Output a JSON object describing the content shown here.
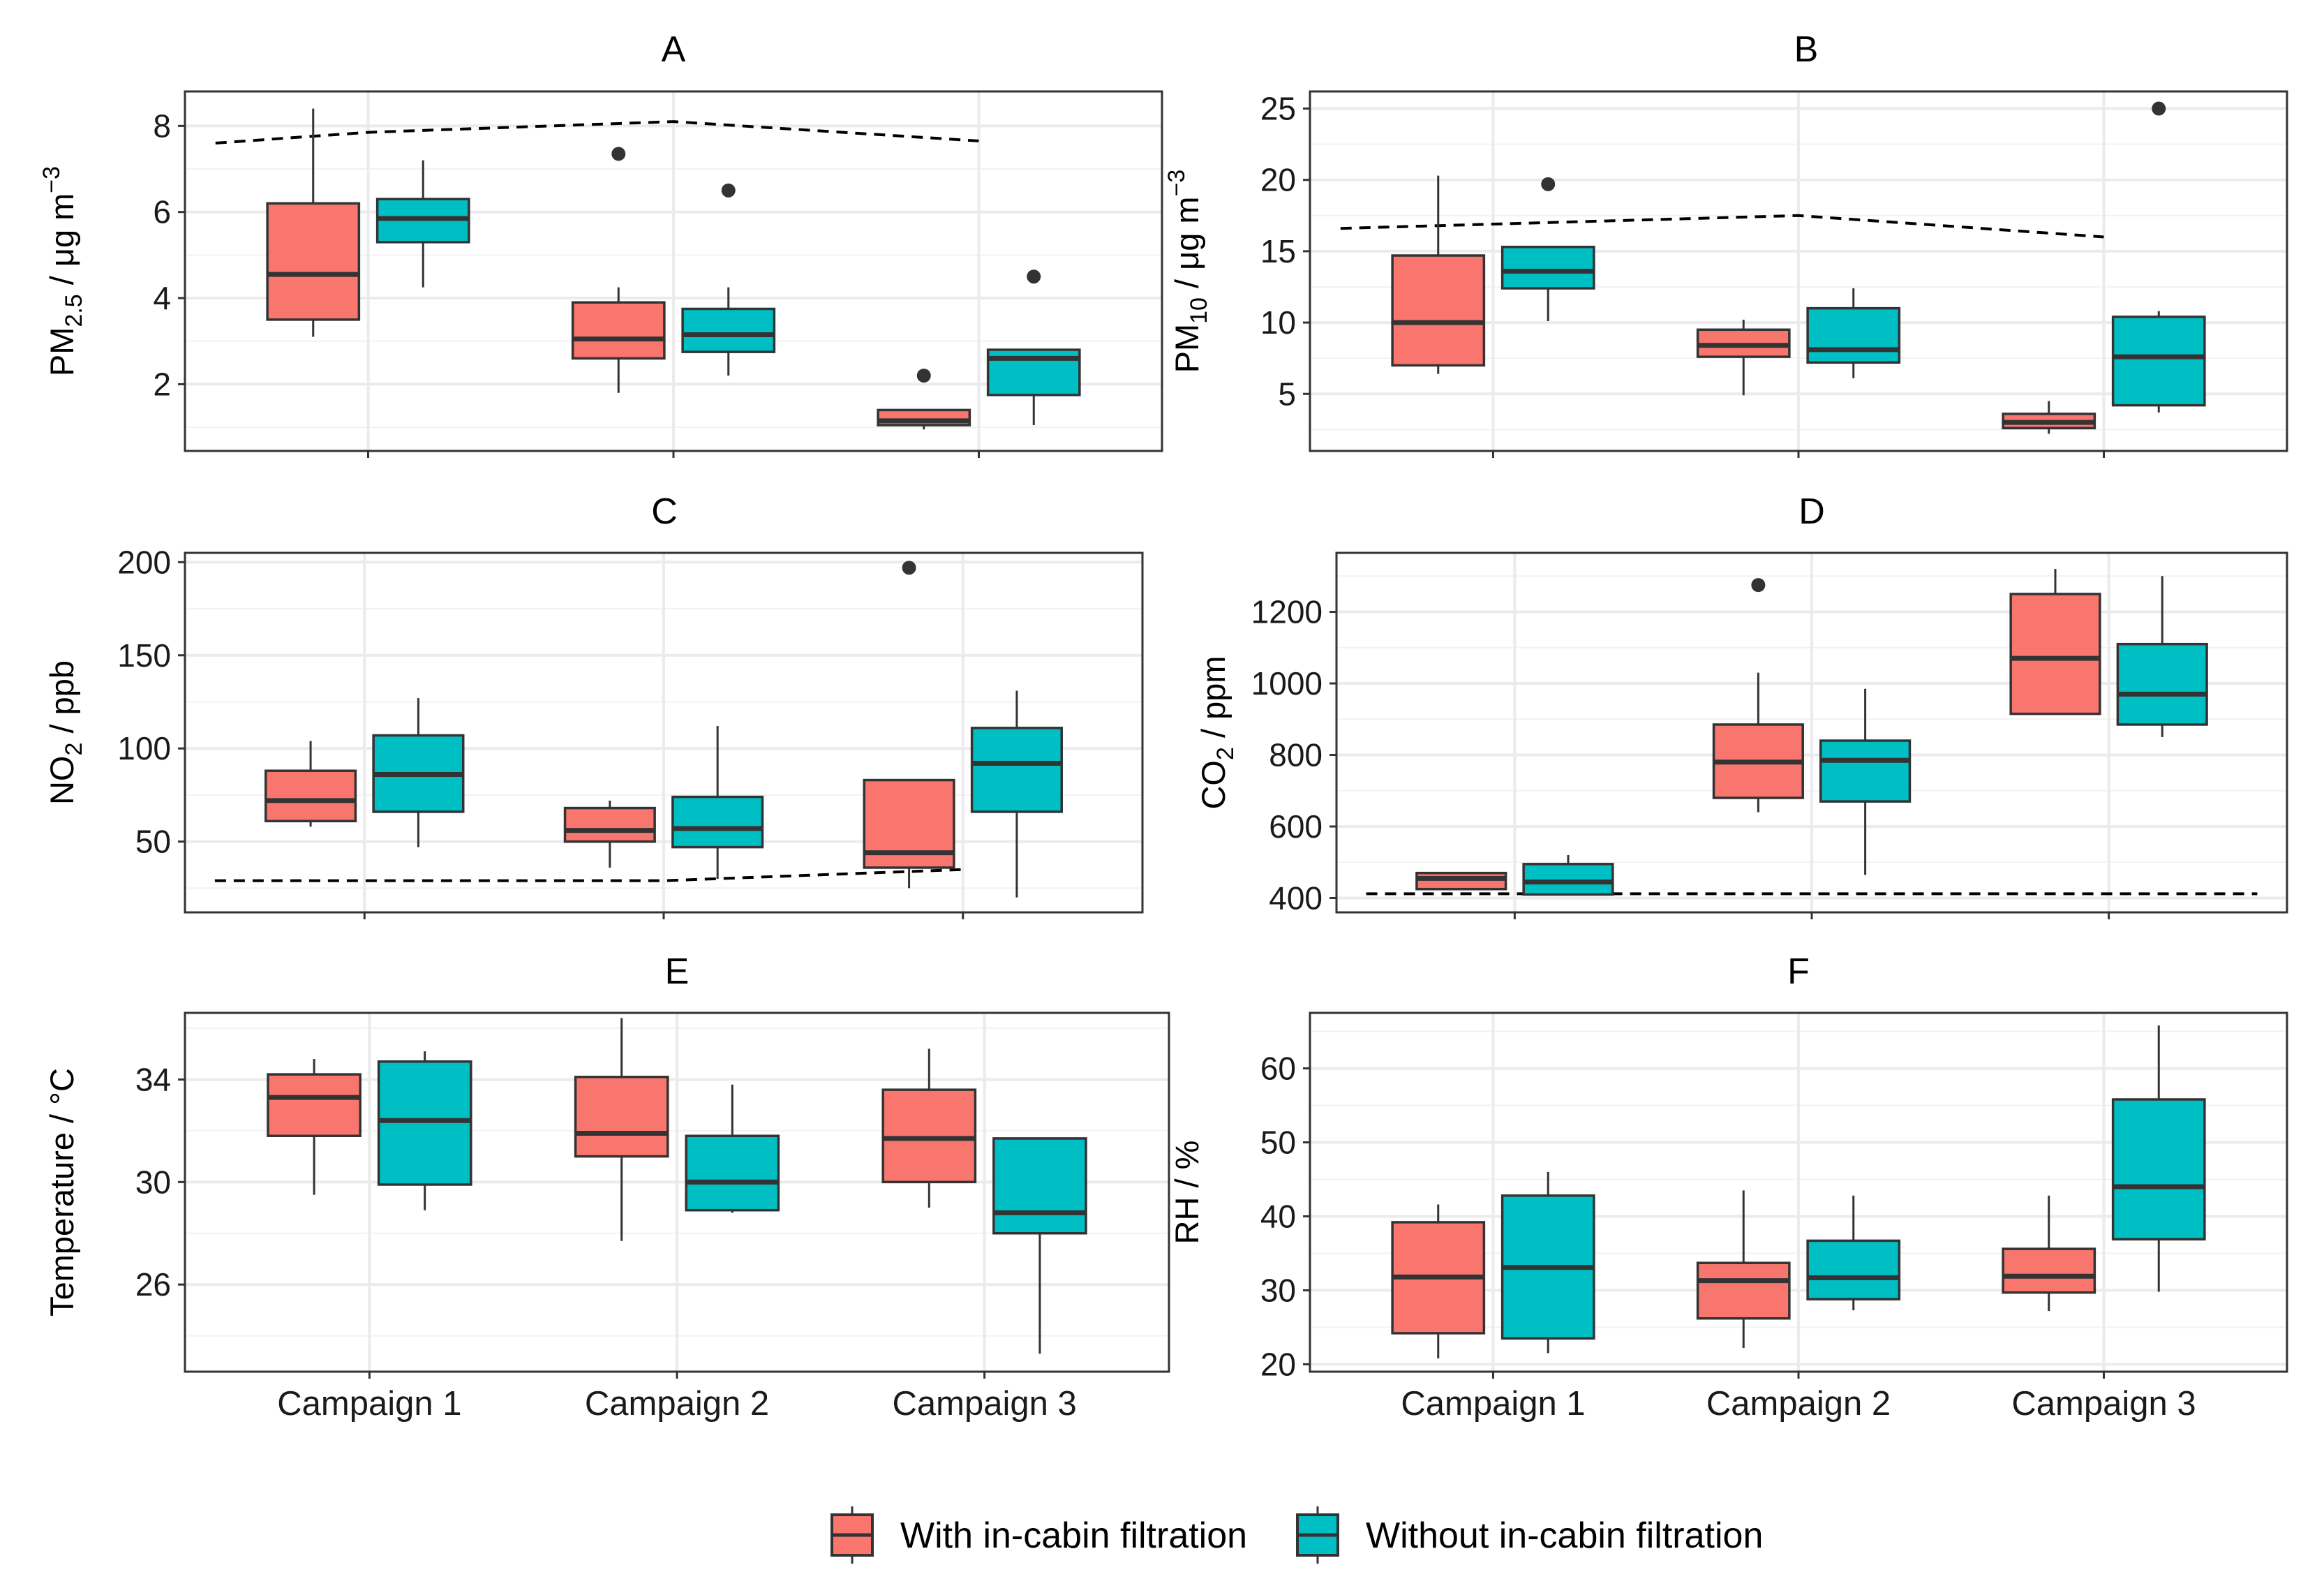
{
  "legend": {
    "items": [
      {
        "label": "With in-cabin filtration",
        "color": "#F8766D"
      },
      {
        "label": "Without in-cabin filtration",
        "color": "#00BFC4"
      }
    ]
  },
  "chart_data": [
    {
      "id": "A",
      "type": "boxplot",
      "title": "A",
      "ylabel": {
        "main": "PM",
        "sub": "2.5",
        "unit": " / μg m",
        "sup": "−3"
      },
      "categories": [
        "Campaign 1",
        "Campaign 2",
        "Campaign 3"
      ],
      "show_xtick_labels": false,
      "ylim": [
        0.45,
        8.8
      ],
      "yticks": [
        2,
        4,
        6,
        8
      ],
      "series": [
        {
          "name": "With in-cabin filtration",
          "color": "#F8766D",
          "boxes": [
            {
              "min": 3.1,
              "q1": 3.5,
              "median": 4.55,
              "q3": 6.2,
              "max": 8.4,
              "outliers": []
            },
            {
              "min": 1.8,
              "q1": 2.6,
              "median": 3.05,
              "q3": 3.9,
              "max": 4.25,
              "outliers": [
                7.35
              ]
            },
            {
              "min": 0.95,
              "q1": 1.05,
              "median": 1.15,
              "q3": 1.4,
              "max": 1.4,
              "outliers": [
                2.2
              ]
            }
          ]
        },
        {
          "name": "Without in-cabin filtration",
          "color": "#00BFC4",
          "boxes": [
            {
              "min": 4.25,
              "q1": 5.3,
              "median": 5.85,
              "q3": 6.3,
              "max": 7.2,
              "outliers": []
            },
            {
              "min": 2.2,
              "q1": 2.75,
              "median": 3.15,
              "q3": 3.75,
              "max": 4.25,
              "outliers": [
                6.5
              ]
            },
            {
              "min": 1.05,
              "q1": 1.75,
              "median": 2.6,
              "q3": 2.8,
              "max": 2.8,
              "outliers": [
                4.5
              ]
            }
          ]
        }
      ],
      "reference_line": {
        "x": [
          0.5,
          1,
          2,
          3
        ],
        "y": [
          7.6,
          7.85,
          8.1,
          7.65
        ]
      }
    },
    {
      "id": "B",
      "type": "boxplot",
      "title": "B",
      "ylabel": {
        "main": "PM",
        "sub": "10",
        "unit": " / μg m",
        "sup": "−3"
      },
      "categories": [
        "Campaign 1",
        "Campaign 2",
        "Campaign 3"
      ],
      "show_xtick_labels": false,
      "ylim": [
        1.0,
        26.2
      ],
      "yticks": [
        5,
        10,
        15,
        20,
        25
      ],
      "series": [
        {
          "name": "With in-cabin filtration",
          "color": "#F8766D",
          "boxes": [
            {
              "min": 6.4,
              "q1": 7.0,
              "median": 10.0,
              "q3": 14.7,
              "max": 20.3,
              "outliers": []
            },
            {
              "min": 4.9,
              "q1": 7.6,
              "median": 8.4,
              "q3": 9.5,
              "max": 10.2,
              "outliers": []
            },
            {
              "min": 2.2,
              "q1": 2.6,
              "median": 3.0,
              "q3": 3.6,
              "max": 4.5,
              "outliers": []
            }
          ]
        },
        {
          "name": "Without in-cabin filtration",
          "color": "#00BFC4",
          "boxes": [
            {
              "min": 10.1,
              "q1": 12.4,
              "median": 13.6,
              "q3": 15.3,
              "max": 15.3,
              "outliers": [
                19.7
              ]
            },
            {
              "min": 6.1,
              "q1": 7.2,
              "median": 8.1,
              "q3": 11.0,
              "max": 12.4,
              "outliers": []
            },
            {
              "min": 3.7,
              "q1": 4.2,
              "median": 7.6,
              "q3": 10.4,
              "max": 10.8,
              "outliers": [
                25.0
              ]
            }
          ]
        }
      ],
      "reference_line": {
        "x": [
          0.5,
          1,
          2,
          3
        ],
        "y": [
          16.6,
          16.9,
          17.5,
          16.0
        ]
      }
    },
    {
      "id": "C",
      "type": "boxplot",
      "title": "C",
      "ylabel": {
        "main": "NO",
        "sub": "2",
        "unit": " / ppb",
        "sup": ""
      },
      "categories": [
        "Campaign 1",
        "Campaign 2",
        "Campaign 3"
      ],
      "show_xtick_labels": false,
      "ylim": [
        12,
        205
      ],
      "yticks": [
        50,
        100,
        150,
        200
      ],
      "series": [
        {
          "name": "With in-cabin filtration",
          "color": "#F8766D",
          "boxes": [
            {
              "min": 58,
              "q1": 61,
              "median": 72,
              "q3": 88,
              "max": 104,
              "outliers": []
            },
            {
              "min": 36,
              "q1": 50,
              "median": 56,
              "q3": 68,
              "max": 72,
              "outliers": []
            },
            {
              "min": 25,
              "q1": 36,
              "median": 44,
              "q3": 83,
              "max": 83,
              "outliers": [
                197
              ]
            }
          ]
        },
        {
          "name": "Without in-cabin filtration",
          "color": "#00BFC4",
          "boxes": [
            {
              "min": 47,
              "q1": 66,
              "median": 86,
              "q3": 107,
              "max": 127,
              "outliers": []
            },
            {
              "min": 30,
              "q1": 47,
              "median": 57,
              "q3": 74,
              "max": 112,
              "outliers": []
            },
            {
              "min": 20,
              "q1": 66,
              "median": 92,
              "q3": 111,
              "max": 131,
              "outliers": []
            }
          ]
        }
      ],
      "reference_line": {
        "x": [
          0.5,
          1,
          2,
          3
        ],
        "y": [
          29,
          29,
          29,
          35
        ]
      }
    },
    {
      "id": "D",
      "type": "boxplot",
      "title": "D",
      "ylabel": {
        "main": "CO",
        "sub": "2",
        "unit": " / ppm",
        "sup": ""
      },
      "categories": [
        "Campaign 1",
        "Campaign 2",
        "Campaign 3"
      ],
      "show_xtick_labels": false,
      "ylim": [
        360,
        1365
      ],
      "yticks": [
        400,
        600,
        800,
        1000,
        1200
      ],
      "series": [
        {
          "name": "With in-cabin filtration",
          "color": "#F8766D",
          "boxes": [
            {
              "min": 425,
              "q1": 425,
              "median": 455,
              "q3": 470,
              "max": 470,
              "outliers": []
            },
            {
              "min": 640,
              "q1": 680,
              "median": 780,
              "q3": 885,
              "max": 1030,
              "outliers": [
                1275
              ]
            },
            {
              "min": 915,
              "q1": 915,
              "median": 1070,
              "q3": 1250,
              "max": 1320,
              "outliers": []
            }
          ]
        },
        {
          "name": "Without in-cabin filtration",
          "color": "#00BFC4",
          "boxes": [
            {
              "min": 410,
              "q1": 410,
              "median": 445,
              "q3": 495,
              "max": 520,
              "outliers": []
            },
            {
              "min": 465,
              "q1": 670,
              "median": 785,
              "q3": 840,
              "max": 985,
              "outliers": []
            },
            {
              "min": 850,
              "q1": 885,
              "median": 970,
              "q3": 1110,
              "max": 1300,
              "outliers": []
            }
          ]
        }
      ],
      "reference_line": {
        "x": [
          0.5,
          3.5
        ],
        "y": [
          412,
          412
        ]
      }
    },
    {
      "id": "E",
      "type": "boxplot",
      "title": "E",
      "ylabel": {
        "main": "Temperature / °C",
        "sub": "",
        "unit": "",
        "sup": ""
      },
      "categories": [
        "Campaign 1",
        "Campaign 2",
        "Campaign 3"
      ],
      "show_xtick_labels": true,
      "ylim": [
        22.6,
        36.6
      ],
      "yticks": [
        26,
        30,
        34
      ],
      "series": [
        {
          "name": "With in-cabin filtration",
          "color": "#F8766D",
          "boxes": [
            {
              "min": 29.5,
              "q1": 31.8,
              "median": 33.3,
              "q3": 34.2,
              "max": 34.8,
              "outliers": []
            },
            {
              "min": 27.7,
              "q1": 31.0,
              "median": 31.9,
              "q3": 34.1,
              "max": 36.4,
              "outliers": []
            },
            {
              "min": 29.0,
              "q1": 30.0,
              "median": 31.7,
              "q3": 33.6,
              "max": 35.2,
              "outliers": []
            }
          ]
        },
        {
          "name": "Without in-cabin filtration",
          "color": "#00BFC4",
          "boxes": [
            {
              "min": 28.9,
              "q1": 29.9,
              "median": 32.4,
              "q3": 34.7,
              "max": 35.1,
              "outliers": []
            },
            {
              "min": 28.8,
              "q1": 28.9,
              "median": 30.0,
              "q3": 31.8,
              "max": 33.8,
              "outliers": []
            },
            {
              "min": 23.3,
              "q1": 28.0,
              "median": 28.8,
              "q3": 31.7,
              "max": 31.7,
              "outliers": []
            }
          ]
        }
      ],
      "reference_line": null
    },
    {
      "id": "F",
      "type": "boxplot",
      "title": "F",
      "ylabel": {
        "main": "RH / %",
        "sub": "",
        "unit": "",
        "sup": ""
      },
      "categories": [
        "Campaign 1",
        "Campaign 2",
        "Campaign 3"
      ],
      "show_xtick_labels": true,
      "ylim": [
        19,
        67.5
      ],
      "yticks": [
        20,
        30,
        40,
        50,
        60
      ],
      "series": [
        {
          "name": "With in-cabin filtration",
          "color": "#F8766D",
          "boxes": [
            {
              "min": 20.8,
              "q1": 24.2,
              "median": 31.8,
              "q3": 39.2,
              "max": 41.6,
              "outliers": []
            },
            {
              "min": 22.2,
              "q1": 26.2,
              "median": 31.3,
              "q3": 33.7,
              "max": 43.5,
              "outliers": []
            },
            {
              "min": 27.2,
              "q1": 29.7,
              "median": 31.9,
              "q3": 35.6,
              "max": 42.8,
              "outliers": []
            }
          ]
        },
        {
          "name": "Without in-cabin filtration",
          "color": "#00BFC4",
          "boxes": [
            {
              "min": 21.5,
              "q1": 23.5,
              "median": 33.1,
              "q3": 42.8,
              "max": 46.0,
              "outliers": []
            },
            {
              "min": 27.3,
              "q1": 28.8,
              "median": 31.7,
              "q3": 36.7,
              "max": 42.8,
              "outliers": []
            },
            {
              "min": 29.8,
              "q1": 36.9,
              "median": 44.0,
              "q3": 55.8,
              "max": 65.8,
              "outliers": []
            }
          ]
        }
      ],
      "reference_line": null
    }
  ]
}
